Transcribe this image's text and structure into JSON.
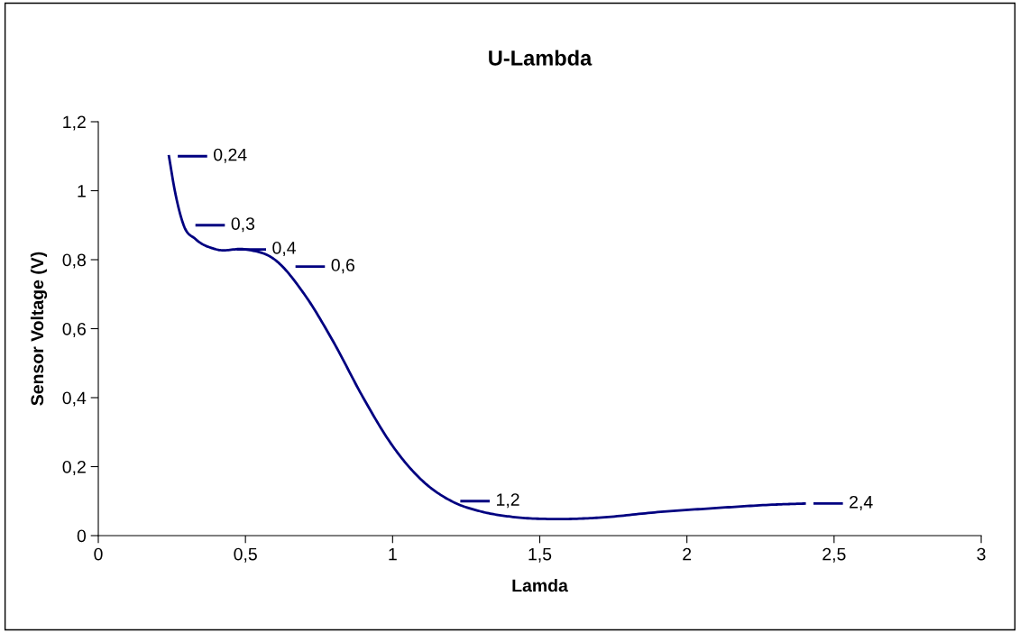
{
  "chart_data": {
    "type": "line",
    "title": "U-Lambda",
    "xlabel": "Lamda",
    "ylabel": "Sensor Voltage (V)",
    "series": [
      {
        "color": "#000080",
        "x": [
          0.24,
          0.26,
          0.29,
          0.33,
          0.4,
          0.5,
          0.6,
          0.7,
          0.8,
          0.9,
          1.0,
          1.1,
          1.2,
          1.3,
          1.4,
          1.56,
          1.7,
          1.9,
          2.1,
          2.3,
          2.4
        ],
        "values": [
          1.1,
          1.0,
          0.9,
          0.86,
          0.83,
          0.83,
          0.8,
          0.7,
          0.56,
          0.4,
          0.26,
          0.16,
          0.1,
          0.07,
          0.055,
          0.048,
          0.052,
          0.068,
          0.08,
          0.09,
          0.093
        ]
      }
    ],
    "annotations": [
      {
        "text": "0,24",
        "x": 0.24,
        "y": 1.1
      },
      {
        "text": "0,3",
        "x": 0.3,
        "y": 0.9
      },
      {
        "text": "0,4",
        "x": 0.44,
        "y": 0.83
      },
      {
        "text": "0,6",
        "x": 0.64,
        "y": 0.78
      },
      {
        "text": "1,2",
        "x": 1.2,
        "y": 0.1
      },
      {
        "text": "2,4",
        "x": 2.4,
        "y": 0.093
      }
    ],
    "xlim": [
      0,
      3
    ],
    "xticks": [
      0,
      {
        "value": 0.5,
        "label": "0,5"
      },
      1,
      {
        "value": 1.5,
        "label": "1,5"
      },
      2,
      {
        "value": 2.5,
        "label": "2,5"
      },
      3
    ],
    "ylim": [
      0,
      1.2
    ],
    "yticks": [
      0,
      {
        "value": 0.2,
        "label": "0,2"
      },
      {
        "value": 0.4,
        "label": "0,4"
      },
      {
        "value": 0.6,
        "label": "0,6"
      },
      {
        "value": 0.8,
        "label": "0,8"
      },
      1,
      {
        "value": 1.2,
        "label": "1,2"
      }
    ],
    "grid": false,
    "legend": false,
    "marker": "none",
    "line_style": "solid"
  }
}
